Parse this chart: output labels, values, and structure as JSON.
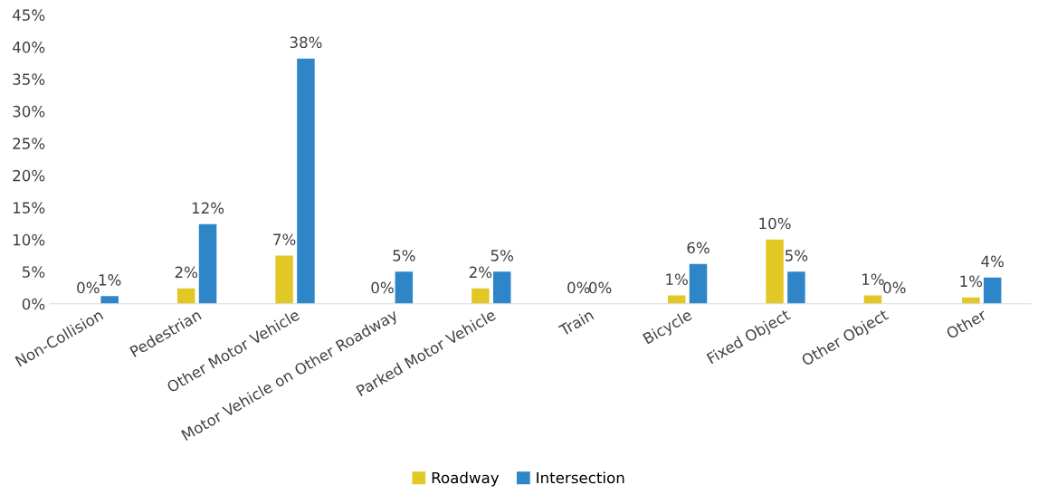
{
  "chart_data": {
    "type": "bar",
    "categories": [
      "Non-Collision",
      "Pedestrian",
      "Other Motor Vehicle",
      "Motor Vehicle on Other Roadway",
      "Parked Motor Vehicle",
      "Train",
      "Bicycle",
      "Fixed Object",
      "Other Object",
      "Other"
    ],
    "series": [
      {
        "name": "Roadway",
        "color": "#e2c824",
        "values": [
          0,
          2.4,
          7.5,
          0,
          2.4,
          0,
          1.3,
          10.0,
          1.3,
          1.0
        ],
        "value_labels": [
          "0%",
          "2%",
          "7%",
          "0%",
          "2%",
          "0%",
          "1%",
          "10%",
          "1%",
          "1%"
        ]
      },
      {
        "name": "Intersection",
        "color": "#2e86c8",
        "values": [
          1.2,
          12.4,
          38.2,
          5.0,
          5.0,
          0,
          6.2,
          5.0,
          0,
          4.1
        ],
        "value_labels": [
          "1%",
          "12%",
          "38%",
          "5%",
          "5%",
          "0%",
          "6%",
          "5%",
          "0%",
          "4%"
        ]
      }
    ],
    "ylim": [
      0,
      45
    ],
    "yticks": [
      {
        "value": 0,
        "label": "0%"
      },
      {
        "value": 5,
        "label": "5%"
      },
      {
        "value": 10,
        "label": "10%"
      },
      {
        "value": 15,
        "label": "15%"
      },
      {
        "value": 20,
        "label": "20%"
      },
      {
        "value": 25,
        "label": "25%"
      },
      {
        "value": 30,
        "label": "30%"
      },
      {
        "value": 35,
        "label": "35%"
      },
      {
        "value": 40,
        "label": "40%"
      },
      {
        "value": 45,
        "label": "45%"
      }
    ],
    "grid": false,
    "legend": "bottom"
  }
}
